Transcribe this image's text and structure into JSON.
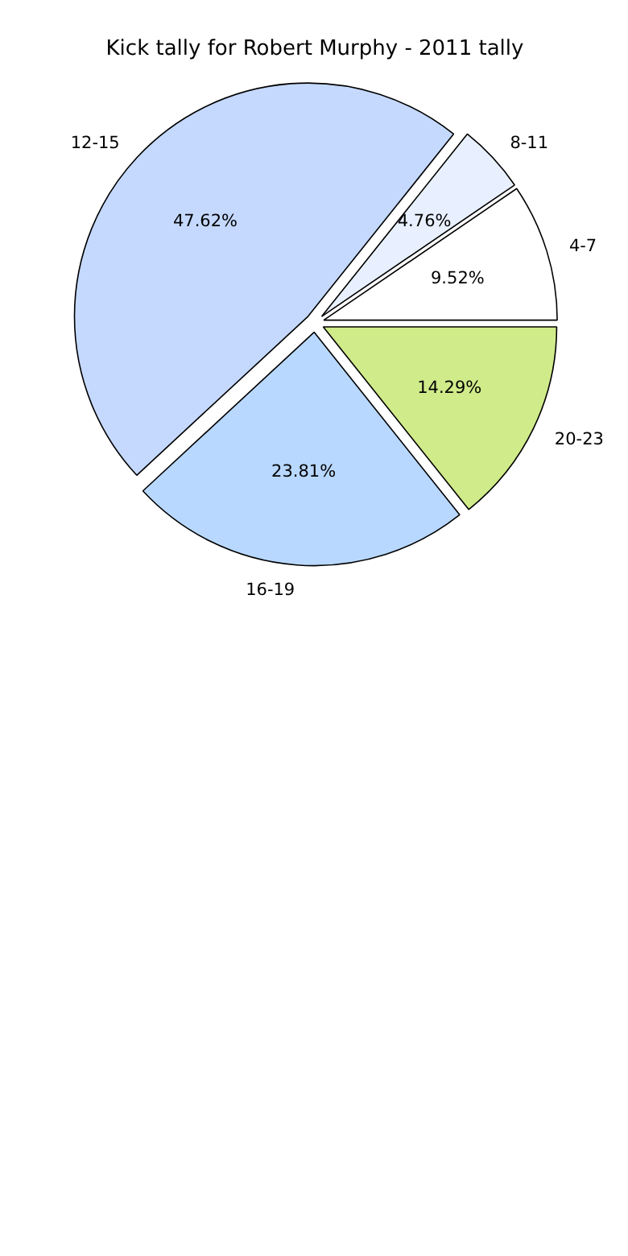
{
  "chart_data": {
    "type": "pie",
    "title": "Kick tally for Robert Murphy - 2011 tally",
    "categories": [
      "4-7",
      "8-11",
      "12-15",
      "16-19",
      "20-23"
    ],
    "values": [
      9.52,
      4.76,
      47.62,
      23.81,
      14.29
    ],
    "colors": [
      "#ffffff",
      "#e8f0ff",
      "#c5d9ff",
      "#b8d8ff",
      "#d0eb8a"
    ],
    "value_labels": [
      "9.52%",
      "4.76%",
      "47.62%",
      "23.81%",
      "14.29%"
    ]
  }
}
